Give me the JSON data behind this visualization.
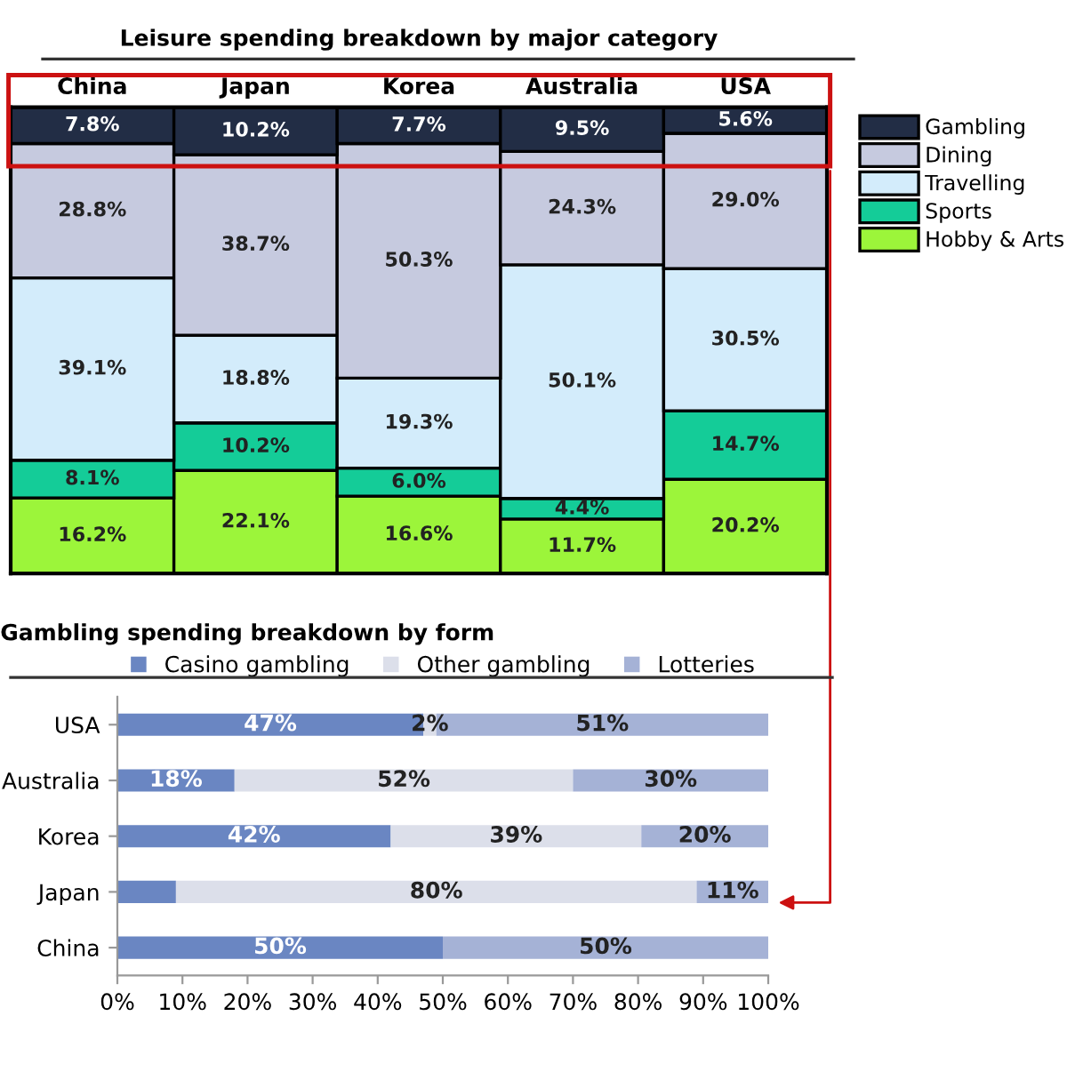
{
  "chart_data": [
    {
      "type": "bar",
      "title": "Leisure spending breakdown by major category",
      "categories": [
        "China",
        "Japan",
        "Korea",
        "Australia",
        "USA"
      ],
      "stacked": true,
      "legend": "right",
      "grid": false,
      "series": [
        {
          "name": "Hobby & Arts",
          "color": "#9cf53a",
          "values": [
            16.2,
            22.1,
            16.6,
            11.7,
            20.2
          ],
          "value_labels": [
            "16.2%",
            "22.1%",
            "16.6%",
            "11.7%",
            "20.2%"
          ]
        },
        {
          "name": "Sports",
          "color": "#14cc98",
          "values": [
            8.1,
            10.2,
            6.0,
            4.4,
            14.7
          ],
          "value_labels": [
            "8.1%",
            "10.2%",
            "6.0%",
            "4.4%",
            "14.7%"
          ]
        },
        {
          "name": "Travelling",
          "color": "#d3ecfb",
          "values": [
            39.1,
            18.8,
            19.3,
            50.1,
            30.5
          ],
          "value_labels": [
            "39.1%",
            "18.8%",
            "19.3%",
            "50.1%",
            "30.5%"
          ]
        },
        {
          "name": "Dining",
          "color": "#c6cadf",
          "values": [
            28.8,
            38.7,
            50.3,
            24.3,
            29.0
          ],
          "value_labels": [
            "28.8%",
            "38.7%",
            "50.3%",
            "24.3%",
            "29.0%"
          ]
        },
        {
          "name": "Gambling",
          "color": "#222d45",
          "values": [
            7.8,
            10.2,
            7.7,
            9.5,
            5.6
          ],
          "value_labels": [
            "7.8%",
            "10.2%",
            "7.7%",
            "9.5%",
            "5.6%"
          ]
        }
      ]
    },
    {
      "type": "bar",
      "title": "Gambling spending breakdown by form",
      "orientation": "horizontal",
      "stacked": true,
      "categories": [
        "USA",
        "Australia",
        "Korea",
        "Japan",
        "China"
      ],
      "legend": "top",
      "grid": false,
      "xlim": [
        0,
        100
      ],
      "xticks": [
        {
          "value": 0,
          "label": "0%"
        },
        {
          "value": 10,
          "label": "10%"
        },
        {
          "value": 20,
          "label": "20%"
        },
        {
          "value": 30,
          "label": "30%"
        },
        {
          "value": 40,
          "label": "40%"
        },
        {
          "value": 50,
          "label": "50%"
        },
        {
          "value": 60,
          "label": "60%"
        },
        {
          "value": 70,
          "label": "70%"
        },
        {
          "value": 80,
          "label": "80%"
        },
        {
          "value": 90,
          "label": "90%"
        },
        {
          "value": 100,
          "label": "100%"
        }
      ],
      "series": [
        {
          "name": "Casino gambling",
          "color": "#6a86c2",
          "values": [
            47,
            18,
            42,
            9,
            50
          ],
          "value_labels": [
            "47%",
            "18%",
            "42%",
            null,
            "50%"
          ]
        },
        {
          "name": "Other gambling",
          "color": "#dcdfea",
          "values": [
            2,
            52,
            38.5,
            80,
            0
          ],
          "value_labels": [
            "2%",
            "52%",
            "39%",
            "80%",
            null
          ]
        },
        {
          "name": "Lotteries",
          "color": "#a5b2d6",
          "values": [
            51,
            30,
            19.5,
            11,
            50
          ],
          "value_labels": [
            "51%",
            "30%",
            "20%",
            "11%",
            "50%"
          ]
        }
      ]
    }
  ]
}
